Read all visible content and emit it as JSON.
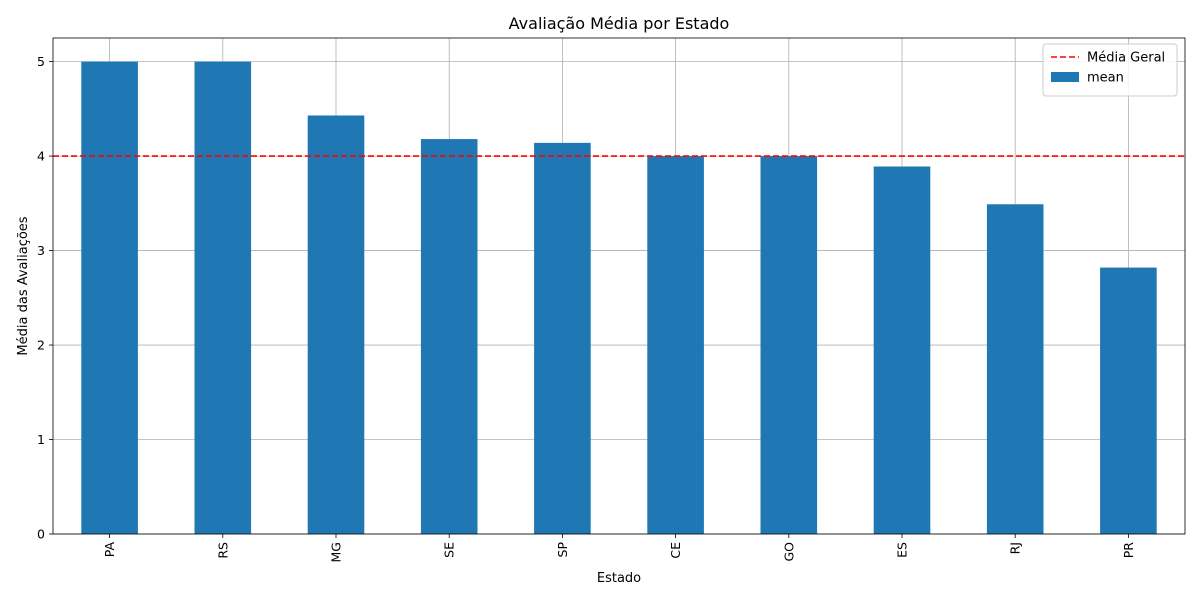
{
  "chart_data": {
    "type": "bar",
    "title": "Avaliação Média por Estado",
    "xlabel": "Estado",
    "ylabel": "Média das Avaliações",
    "categories": [
      "PA",
      "RS",
      "MG",
      "SE",
      "SP",
      "CE",
      "GO",
      "ES",
      "RJ",
      "PR"
    ],
    "series": [
      {
        "name": "mean",
        "color": "#1f77b4",
        "values": [
          5.0,
          5.0,
          4.43,
          4.18,
          4.14,
          4.0,
          4.0,
          3.89,
          3.49,
          2.82
        ]
      }
    ],
    "reference_line": {
      "name": "Média Geral",
      "value": 4.0,
      "color": "#ff0000",
      "style": "dashed"
    },
    "ylim": [
      0,
      5.25
    ],
    "yticks": [
      0,
      1,
      2,
      3,
      4,
      5
    ],
    "grid": true,
    "legend_position": "top-right"
  }
}
